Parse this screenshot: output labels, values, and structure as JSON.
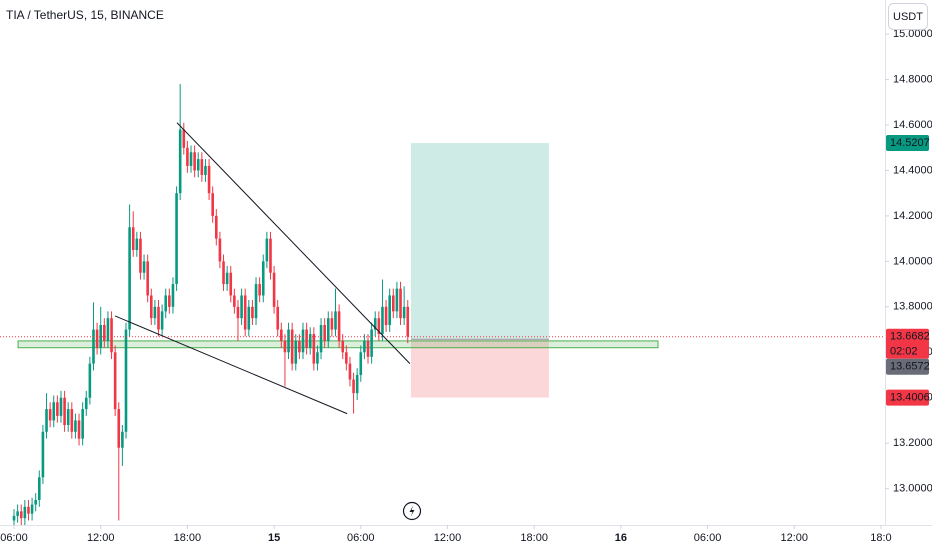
{
  "chart_data": {
    "type": "candlestick",
    "title": "TIA / TetherUS, 15, BINANCE",
    "currency": "USDT",
    "up_color": "#089981",
    "down_color": "#f23645",
    "xlim": [
      5.03,
      66.28
    ],
    "ylim": [
      12.84,
      15.15
    ],
    "xticks": [
      {
        "value": 6,
        "label": "06:00"
      },
      {
        "value": 12,
        "label": "12:00"
      },
      {
        "value": 18,
        "label": "18:00"
      },
      {
        "value": 24,
        "label": "15"
      },
      {
        "value": 30,
        "label": "06:00"
      },
      {
        "value": 36,
        "label": "12:00"
      },
      {
        "value": 42,
        "label": "18:00"
      },
      {
        "value": 48,
        "label": "16"
      },
      {
        "value": 54,
        "label": "06:00"
      },
      {
        "value": 60,
        "label": "12:00"
      },
      {
        "value": 66,
        "label": "18:0"
      }
    ],
    "yticks": [
      {
        "value": 13,
        "label": "13.0000"
      },
      {
        "value": 13.2,
        "label": "13.2000"
      },
      {
        "value": 13.4,
        "label": "13.4000"
      },
      {
        "value": 13.6,
        "label": "13.6000"
      },
      {
        "value": 13.8,
        "label": "13.8000"
      },
      {
        "value": 14,
        "label": "14.0000"
      },
      {
        "value": 14.2,
        "label": "14.2000"
      },
      {
        "value": 14.4,
        "label": "14.4000"
      },
      {
        "value": 14.6,
        "label": "14.6000"
      },
      {
        "value": 14.8,
        "label": "14.8000"
      },
      {
        "value": 15,
        "label": "15.0000"
      }
    ],
    "last_price": 13.6682,
    "countdown": "02:02",
    "series": [
      {
        "name": "TIA / TetherUS",
        "x": [
          6,
          6.25,
          6.5,
          6.75,
          7,
          7.25,
          7.5,
          7.75,
          8,
          8.25,
          8.5,
          8.75,
          9,
          9.25,
          9.5,
          9.75,
          10,
          10.25,
          10.5,
          10.75,
          11,
          11.25,
          11.5,
          11.75,
          12,
          12.25,
          12.5,
          12.75,
          13,
          13.25,
          13.5,
          13.75,
          14,
          14.25,
          14.5,
          14.75,
          15,
          15.25,
          15.5,
          15.75,
          16,
          16.25,
          16.5,
          16.75,
          17,
          17.25,
          17.5,
          17.75,
          18,
          18.25,
          18.5,
          18.75,
          19,
          19.25,
          19.5,
          19.75,
          20,
          20.25,
          20.5,
          20.75,
          21,
          21.25,
          21.5,
          21.75,
          22,
          22.25,
          22.5,
          22.75,
          23,
          23.25,
          23.5,
          23.75,
          24,
          24.25,
          24.5,
          24.75,
          25,
          25.25,
          25.5,
          25.75,
          26,
          26.25,
          26.5,
          26.75,
          27,
          27.25,
          27.5,
          27.75,
          28,
          28.25,
          28.5,
          28.75,
          29,
          29.25,
          29.5,
          29.75,
          30,
          30.25,
          30.5,
          30.75,
          31,
          31.25,
          31.5,
          31.75,
          32,
          32.25,
          32.5,
          32.75,
          33,
          33.25
        ],
        "ohlc": [
          [
            12.86,
            12.91,
            12.83,
            12.88
          ],
          [
            12.88,
            12.93,
            12.85,
            12.9
          ],
          [
            12.9,
            12.93,
            12.84,
            12.87
          ],
          [
            12.87,
            12.95,
            12.84,
            12.92
          ],
          [
            12.92,
            12.95,
            12.86,
            12.89
          ],
          [
            12.89,
            12.96,
            12.86,
            12.93
          ],
          [
            12.93,
            12.98,
            12.9,
            12.95
          ],
          [
            12.95,
            13.08,
            12.92,
            13.05
          ],
          [
            13.05,
            13.28,
            13.02,
            13.25
          ],
          [
            13.25,
            13.42,
            13.22,
            13.35
          ],
          [
            13.35,
            13.38,
            13.27,
            13.3
          ],
          [
            13.3,
            13.41,
            13.27,
            13.38
          ],
          [
            13.38,
            13.41,
            13.29,
            13.32
          ],
          [
            13.32,
            13.43,
            13.29,
            13.4
          ],
          [
            13.4,
            13.43,
            13.25,
            13.28
          ],
          [
            13.28,
            13.38,
            13.25,
            13.35
          ],
          [
            13.35,
            13.38,
            13.22,
            13.25
          ],
          [
            13.25,
            13.33,
            13.22,
            13.3
          ],
          [
            13.3,
            13.33,
            13.19,
            13.22
          ],
          [
            13.22,
            13.38,
            13.19,
            13.35
          ],
          [
            13.35,
            13.43,
            13.32,
            13.4
          ],
          [
            13.4,
            13.58,
            13.37,
            13.55
          ],
          [
            13.55,
            13.82,
            13.52,
            13.7
          ],
          [
            13.7,
            13.73,
            13.59,
            13.62
          ],
          [
            13.62,
            13.8,
            13.59,
            13.72
          ],
          [
            13.72,
            13.75,
            13.62,
            13.65
          ],
          [
            13.65,
            13.78,
            13.62,
            13.75
          ],
          [
            13.75,
            13.78,
            13.57,
            13.6
          ],
          [
            13.6,
            13.63,
            13.32,
            13.35
          ],
          [
            13.35,
            13.38,
            12.86,
            13.18
          ],
          [
            13.18,
            13.28,
            13.1,
            13.25
          ],
          [
            13.25,
            13.73,
            13.22,
            13.7
          ],
          [
            13.7,
            14.25,
            13.67,
            14.15
          ],
          [
            14.15,
            14.22,
            14.02,
            14.05
          ],
          [
            14.05,
            14.13,
            14.02,
            14.1
          ],
          [
            14.1,
            14.13,
            13.92,
            13.95
          ],
          [
            13.95,
            14.03,
            13.92,
            14
          ],
          [
            14,
            14.03,
            13.82,
            13.85
          ],
          [
            13.85,
            13.88,
            13.72,
            13.75
          ],
          [
            13.75,
            13.83,
            13.72,
            13.8
          ],
          [
            13.8,
            13.83,
            13.67,
            13.7
          ],
          [
            13.7,
            13.81,
            13.67,
            13.78
          ],
          [
            13.78,
            13.88,
            13.75,
            13.85
          ],
          [
            13.85,
            13.88,
            13.77,
            13.8
          ],
          [
            13.8,
            13.93,
            13.77,
            13.9
          ],
          [
            13.9,
            14.33,
            13.87,
            14.3
          ],
          [
            14.3,
            14.78,
            14.27,
            14.58
          ],
          [
            14.58,
            14.61,
            14.47,
            14.5
          ],
          [
            14.5,
            14.53,
            14.39,
            14.42
          ],
          [
            14.42,
            14.51,
            14.39,
            14.48
          ],
          [
            14.48,
            14.51,
            14.37,
            14.4
          ],
          [
            14.4,
            14.48,
            14.37,
            14.45
          ],
          [
            14.45,
            14.48,
            14.35,
            14.38
          ],
          [
            14.38,
            14.45,
            14.35,
            14.42
          ],
          [
            14.42,
            14.45,
            14.27,
            14.3
          ],
          [
            14.3,
            14.33,
            14.17,
            14.2
          ],
          [
            14.2,
            14.23,
            14.07,
            14.1
          ],
          [
            14.1,
            14.13,
            13.97,
            14
          ],
          [
            14,
            14.03,
            13.87,
            13.9
          ],
          [
            13.9,
            13.98,
            13.87,
            13.95
          ],
          [
            13.95,
            13.98,
            13.82,
            13.85
          ],
          [
            13.85,
            13.88,
            13.77,
            13.8
          ],
          [
            13.8,
            13.83,
            13.65,
            13.75
          ],
          [
            13.75,
            13.88,
            13.72,
            13.85
          ],
          [
            13.85,
            13.88,
            13.67,
            13.7
          ],
          [
            13.7,
            13.83,
            13.67,
            13.8
          ],
          [
            13.8,
            13.83,
            13.72,
            13.75
          ],
          [
            13.75,
            13.93,
            13.72,
            13.9
          ],
          [
            13.9,
            13.93,
            13.82,
            13.85
          ],
          [
            13.85,
            14.03,
            13.82,
            14
          ],
          [
            14,
            14.13,
            13.97,
            14.1
          ],
          [
            14.1,
            14.13,
            13.92,
            13.95
          ],
          [
            13.95,
            13.98,
            13.77,
            13.8
          ],
          [
            13.8,
            13.83,
            13.67,
            13.7
          ],
          [
            13.7,
            13.73,
            13.62,
            13.65
          ],
          [
            13.65,
            13.68,
            13.45,
            13.6
          ],
          [
            13.6,
            13.73,
            13.57,
            13.7
          ],
          [
            13.7,
            13.73,
            13.52,
            13.55
          ],
          [
            13.55,
            13.68,
            13.52,
            13.65
          ],
          [
            13.65,
            13.68,
            13.57,
            13.6
          ],
          [
            13.6,
            13.73,
            13.57,
            13.7
          ],
          [
            13.7,
            13.73,
            13.59,
            13.62
          ],
          [
            13.62,
            13.71,
            13.59,
            13.68
          ],
          [
            13.68,
            13.71,
            13.52,
            13.55
          ],
          [
            13.55,
            13.63,
            13.52,
            13.6
          ],
          [
            13.6,
            13.75,
            13.57,
            13.72
          ],
          [
            13.72,
            13.75,
            13.62,
            13.65
          ],
          [
            13.65,
            13.78,
            13.62,
            13.75
          ],
          [
            13.75,
            13.78,
            13.67,
            13.7
          ],
          [
            13.7,
            13.88,
            13.67,
            13.78
          ],
          [
            13.78,
            13.81,
            13.62,
            13.65
          ],
          [
            13.65,
            13.68,
            13.57,
            13.6
          ],
          [
            13.6,
            13.63,
            13.52,
            13.55
          ],
          [
            13.55,
            13.58,
            13.45,
            13.48
          ],
          [
            13.48,
            13.51,
            13.33,
            13.42
          ],
          [
            13.42,
            13.53,
            13.39,
            13.5
          ],
          [
            13.5,
            13.63,
            13.47,
            13.6
          ],
          [
            13.6,
            13.68,
            13.57,
            13.65
          ],
          [
            13.65,
            13.68,
            13.55,
            13.58
          ],
          [
            13.58,
            13.73,
            13.55,
            13.7
          ],
          [
            13.7,
            13.78,
            13.67,
            13.75
          ],
          [
            13.75,
            13.78,
            13.65,
            13.68
          ],
          [
            13.68,
            13.92,
            13.65,
            13.8
          ],
          [
            13.8,
            13.83,
            13.69,
            13.72
          ],
          [
            13.72,
            13.88,
            13.69,
            13.85
          ],
          [
            13.85,
            13.88,
            13.75,
            13.78
          ],
          [
            13.78,
            13.91,
            13.75,
            13.88
          ],
          [
            13.88,
            13.91,
            13.72,
            13.75
          ],
          [
            13.75,
            13.89,
            13.72,
            13.8
          ],
          [
            13.8,
            13.83,
            13.64,
            13.67
          ]
        ]
      }
    ],
    "drawings": {
      "trendlines": [
        {
          "x": [
            17.28,
            33.4
          ],
          "y": [
            14.61,
            13.55
          ]
        },
        {
          "x": [
            12.99,
            29.05
          ],
          "y": [
            13.76,
            13.33
          ]
        }
      ],
      "zone": {
        "x": [
          6.28,
          50.57
        ],
        "y": [
          13.62,
          13.65
        ]
      },
      "position": {
        "x": [
          33.47,
          43.02
        ],
        "entry": 13.6572,
        "target": 14.5207,
        "stop": 13.4006
      }
    }
  }
}
